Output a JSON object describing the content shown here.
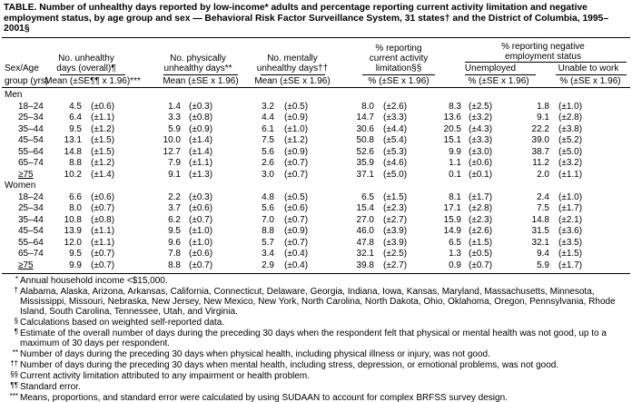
{
  "header": {
    "title": "TABLE. Number of unhealthy days reported by low-income* adults and percentage reporting current activity limitation and negative employment status, by age group and sex — Behavioral Risk Factor Surveillance System, 31 states† and the District of Columbia, 1995–2001§"
  },
  "table": {
    "age_header": [
      "Sex/Age",
      "group (yrs)"
    ],
    "groups": [
      {
        "label": [
          "No. unhealthy",
          "days (overall)¶"
        ],
        "sub": "Mean (±SE¶¶ x 1.96)***"
      },
      {
        "label": [
          "No. physically",
          "unhealthy days**"
        ],
        "sub": "Mean (±SE x 1.96)"
      },
      {
        "label": [
          "No. mentally",
          "unhealthy days††"
        ],
        "sub": "Mean (±SE x 1.96)"
      },
      {
        "label": [
          "% reporting",
          "current activity",
          "limitation§§"
        ],
        "sub": "% (±SE x 1.96)"
      }
    ],
    "employment": {
      "label": [
        "% reporting negative",
        "employment status"
      ],
      "columns": [
        {
          "label": "Unemployed",
          "sub": "% (±SE x 1.96)"
        },
        {
          "label": "Unable to work",
          "sub": "% (±SE x 1.96)"
        }
      ]
    },
    "sections": [
      {
        "label": "Men",
        "rows": [
          [
            "18–24",
            "4.5",
            "(±0.6)",
            "1.4",
            "(±0.3)",
            "3.2",
            "(±0.5)",
            "8.0",
            "(±2.6)",
            "8.3",
            "(±2.5)",
            "1.8",
            "(±1.0)"
          ],
          [
            "25–34",
            "6.4",
            "(±1.1)",
            "3.3",
            "(±0.8)",
            "4.4",
            "(±0.9)",
            "14.7",
            "(±3.3)",
            "13.6",
            "(±3.2)",
            "9.1",
            "(±2.8)"
          ],
          [
            "35–44",
            "9.5",
            "(±1.2)",
            "5.9",
            "(±0.9)",
            "6.1",
            "(±1.0)",
            "30.6",
            "(±4.4)",
            "20.5",
            "(±4.3)",
            "22.2",
            "(±3.8)"
          ],
          [
            "45–54",
            "13.1",
            "(±1.5)",
            "10.0",
            "(±1.4)",
            "7.5",
            "(±1.2)",
            "50.8",
            "(±5.4)",
            "15.1",
            "(±3.3)",
            "39.0",
            "(±5.2)"
          ],
          [
            "55–64",
            "14.8",
            "(±1.5)",
            "12.7",
            "(±1.4)",
            "5.6",
            "(±0.9)",
            "52.6",
            "(±5.3)",
            "9.9",
            "(±3.0)",
            "38.7",
            "(±5.0)"
          ],
          [
            "65–74",
            "8.8",
            "(±1.2)",
            "7.9",
            "(±1.1)",
            "2.6",
            "(±0.7)",
            "35.9",
            "(±4.6)",
            "1.1",
            "(±0.6)",
            "11.2",
            "(±3.2)"
          ],
          [
            "≥75",
            "10.2",
            "(±1.4)",
            "9.1",
            "(±1.3)",
            "3.0",
            "(±0.7)",
            "37.1",
            "(±5.0)",
            "0.1",
            "(±0.1)",
            "2.0",
            "(±1.1)"
          ]
        ]
      },
      {
        "label": "Women",
        "rows": [
          [
            "18–24",
            "6.6",
            "(±0.6)",
            "2.2",
            "(±0.3)",
            "4.8",
            "(±0.5)",
            "6.5",
            "(±1.5)",
            "8.1",
            "(±1.7)",
            "2.4",
            "(±1.0)"
          ],
          [
            "25–34",
            "8.0",
            "(±0.7)",
            "3.7",
            "(±0.6)",
            "5.6",
            "(±0.6)",
            "15.4",
            "(±2.3)",
            "17.1",
            "(±2.8)",
            "7.5",
            "(±1.7)"
          ],
          [
            "35–44",
            "10.8",
            "(±0.8)",
            "6.2",
            "(±0.7)",
            "7.0",
            "(±0.7)",
            "27.0",
            "(±2.7)",
            "15.9",
            "(±2.3)",
            "14.8",
            "(±2.1)"
          ],
          [
            "45–54",
            "13.9",
            "(±1.1)",
            "9.5",
            "(±1.0)",
            "8.8",
            "(±0.9)",
            "46.0",
            "(±3.9)",
            "14.9",
            "(±2.6)",
            "31.5",
            "(±3.6)"
          ],
          [
            "55–64",
            "12.0",
            "(±1.1)",
            "9.6",
            "(±1.0)",
            "5.7",
            "(±0.7)",
            "47.8",
            "(±3.9)",
            "6.5",
            "(±1.5)",
            "32.1",
            "(±3.5)"
          ],
          [
            "65–74",
            "9.5",
            "(±0.7)",
            "7.8",
            "(±0.6)",
            "3.4",
            "(±0.4)",
            "32.1",
            "(±2.5)",
            "1.3",
            "(±0.5)",
            "9.4",
            "(±1.5)"
          ],
          [
            "≥75",
            "9.9",
            "(±0.7)",
            "8.8",
            "(±0.7)",
            "2.9",
            "(±0.4)",
            "39.8",
            "(±2.7)",
            "0.9",
            "(±0.7)",
            "5.9",
            "(±1.7)"
          ]
        ]
      }
    ]
  },
  "footnotes": [
    {
      "mark": "*",
      "text": "Annual household income <$15,000."
    },
    {
      "mark": "†",
      "text": "Alabama, Alaska, Arizona, Arkansas, California, Connecticut, Delaware, Georgia, Indiana, Iowa, Kansas, Maryland, Massachusetts, Minnesota, Mississippi, Missouri, Nebraska, New Jersey, New Mexico, New York, North Carolina, North Dakota, Ohio, Oklahoma, Oregon, Pennsylvania, Rhode Island, South Carolina, Tennessee, Utah, and Virginia."
    },
    {
      "mark": "§",
      "text": "Calculations based on weighted self-reported data."
    },
    {
      "mark": "¶",
      "text": "Estimate of the overall number of days during the preceding 30 days when the respondent felt that physical or mental health was not good, up to a maximum of 30 days per respondent."
    },
    {
      "mark": "**",
      "text": "Number of days during the preceding 30 days when physical health, including physical illness or injury, was not good."
    },
    {
      "mark": "††",
      "text": "Number of days during the preceding 30 days when mental health, including stress, depression, or emotional problems, was not good."
    },
    {
      "mark": "§§",
      "text": "Current activity limitation attributed to any impairment or health problem."
    },
    {
      "mark": "¶¶",
      "text": "Standard error."
    },
    {
      "mark": "***",
      "text": "Means, proportions, and standard error were calculated by using SUDAAN to account for complex BRFSS survey design."
    }
  ]
}
